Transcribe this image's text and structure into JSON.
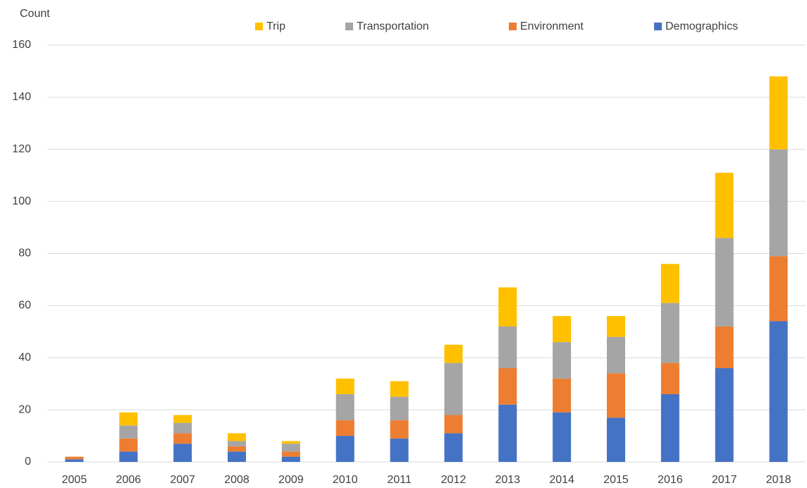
{
  "chart_data": {
    "type": "stacked_bar",
    "y_label": "Count",
    "categories": [
      "2005",
      "2006",
      "2007",
      "2008",
      "2009",
      "2010",
      "2011",
      "2012",
      "2013",
      "2014",
      "2015",
      "2016",
      "2017",
      "2018"
    ],
    "series": [
      {
        "name": "Trip",
        "color": "#ffc000",
        "values": [
          0,
          5,
          3,
          3,
          1,
          6,
          6,
          7,
          15,
          10,
          8,
          15,
          25,
          28
        ]
      },
      {
        "name": "Transportation",
        "color": "#a5a5a5",
        "values": [
          0,
          5,
          4,
          2,
          3,
          10,
          9,
          20,
          16,
          14,
          14,
          23,
          34,
          41
        ]
      },
      {
        "name": "Environment",
        "color": "#ed7d31",
        "values": [
          1,
          5,
          4,
          2,
          2,
          6,
          7,
          7,
          14,
          13,
          17,
          12,
          16,
          25
        ]
      },
      {
        "name": "Demographics",
        "color": "#4472c4",
        "values": [
          1,
          4,
          7,
          4,
          2,
          10,
          9,
          11,
          22,
          19,
          17,
          26,
          36,
          54
        ]
      }
    ],
    "ylim": [
      0,
      160
    ],
    "yticks": [
      0,
      20,
      40,
      60,
      80,
      100,
      120,
      140,
      160
    ],
    "grid": true
  }
}
